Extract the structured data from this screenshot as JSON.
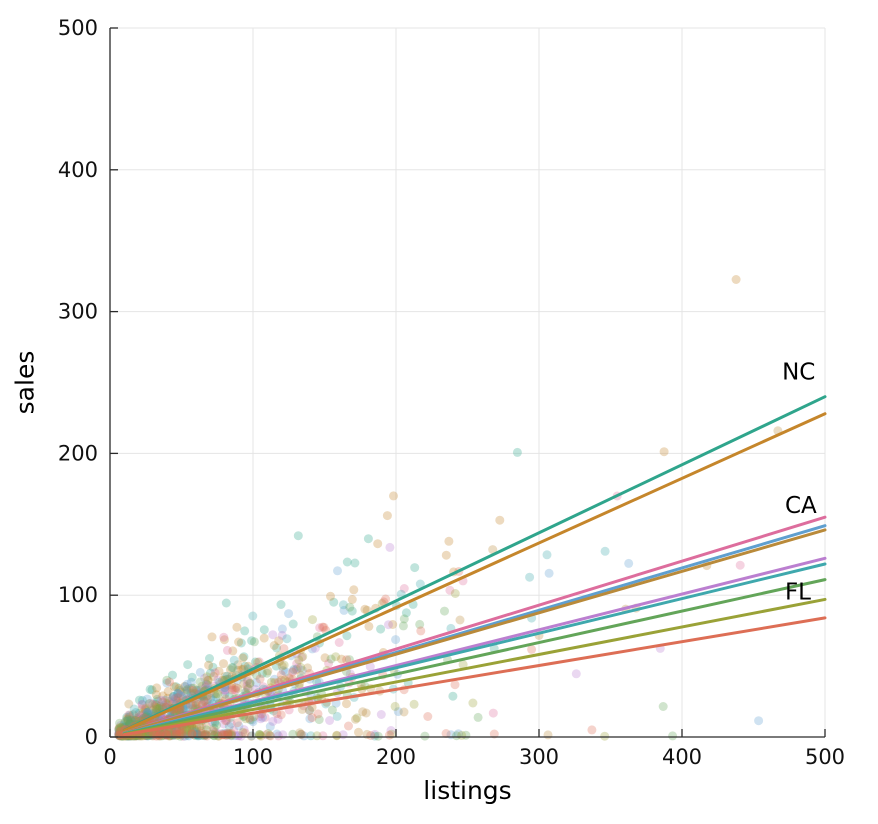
{
  "chart_data": {
    "type": "scatter",
    "title": "",
    "xlabel": "listings",
    "ylabel": "sales",
    "xlim": [
      0,
      500
    ],
    "ylim": [
      0,
      500
    ],
    "xticks": [
      "0",
      "100",
      "200",
      "300",
      "400",
      "500"
    ],
    "yticks": [
      "0",
      "100",
      "200",
      "300",
      "400",
      "500"
    ],
    "grid": true,
    "legend": "none",
    "description": "Semi-transparent scatter of sales vs listings for ten state groups, densely clustered near the origin, with one linear fit line per group fanning out from the origin. Only the NC, CA and FL fit lines are labeled at their right ends.",
    "series": [
      {
        "name": "NC",
        "color": "#2fa58c",
        "slope": 0.48,
        "fit": {
          "x0": 10,
          "y0": 4.8,
          "x1": 500,
          "y1": 240
        },
        "labeled": true
      },
      {
        "name": "",
        "color": "#c5862b",
        "slope": 0.456,
        "fit": {
          "x0": 10,
          "y0": 4.6,
          "x1": 500,
          "y1": 228
        },
        "labeled": false
      },
      {
        "name": "CA",
        "color": "#dd6d9d",
        "slope": 0.31,
        "fit": {
          "x0": 10,
          "y0": 3.1,
          "x1": 500,
          "y1": 155
        },
        "labeled": true
      },
      {
        "name": "",
        "color": "#5f9fcf",
        "slope": 0.298,
        "fit": {
          "x0": 10,
          "y0": 3.0,
          "x1": 500,
          "y1": 149
        },
        "labeled": false
      },
      {
        "name": "",
        "color": "#b98a3a",
        "slope": 0.292,
        "fit": {
          "x0": 10,
          "y0": 2.9,
          "x1": 500,
          "y1": 146
        },
        "labeled": false
      },
      {
        "name": "",
        "color": "#bb7fd0",
        "slope": 0.252,
        "fit": {
          "x0": 10,
          "y0": 2.5,
          "x1": 500,
          "y1": 126
        },
        "labeled": false
      },
      {
        "name": "",
        "color": "#3fa8ad",
        "slope": 0.244,
        "fit": {
          "x0": 10,
          "y0": 2.4,
          "x1": 500,
          "y1": 122
        },
        "labeled": false
      },
      {
        "name": "",
        "color": "#63a559",
        "slope": 0.222,
        "fit": {
          "x0": 10,
          "y0": 2.2,
          "x1": 500,
          "y1": 111
        },
        "labeled": false
      },
      {
        "name": "FL",
        "color": "#9aa237",
        "slope": 0.194,
        "fit": {
          "x0": 10,
          "y0": 1.9,
          "x1": 500,
          "y1": 97
        },
        "labeled": true
      },
      {
        "name": "",
        "color": "#dd6e55",
        "slope": 0.168,
        "fit": {
          "x0": 10,
          "y0": 1.7,
          "x1": 500,
          "y1": 84
        },
        "labeled": false
      }
    ],
    "annotations": [
      {
        "text": "NC",
        "x": 470,
        "y": 252
      },
      {
        "text": "CA",
        "x": 472,
        "y": 158
      },
      {
        "text": "FL",
        "x": 472,
        "y": 97
      }
    ],
    "scatter_style": {
      "alpha": 0.3,
      "radius": 4.5,
      "points_per_group": 130,
      "seed": 20240613,
      "x_exp_mean": 68,
      "x_min": 6,
      "x_max": 498,
      "noise_base": 3,
      "noise_per_x": 0.18
    },
    "style": {
      "grid_color": "#e5e5e5",
      "axis_color": "#2a2a2a",
      "tick_label_color": "#111111",
      "annotation_color": "#000000",
      "line_width": 3,
      "background": "#ffffff"
    }
  }
}
